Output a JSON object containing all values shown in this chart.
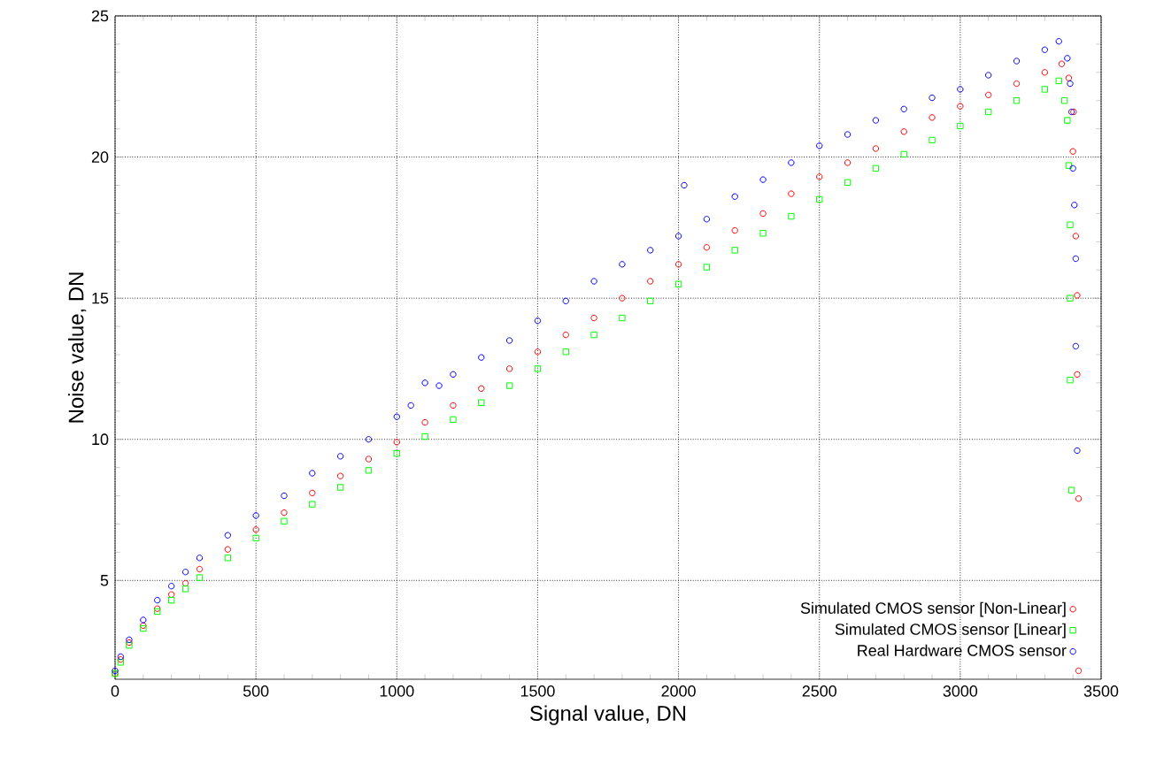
{
  "chart_data": {
    "type": "scatter",
    "xlabel": "Signal value, DN",
    "ylabel": "Noise value, DN",
    "xlim": [
      0,
      3500
    ],
    "ylim": [
      1.5,
      25
    ],
    "xticks": [
      0,
      500,
      1000,
      1500,
      2000,
      2500,
      3000,
      3500
    ],
    "yticks": [
      5,
      10,
      15,
      20,
      25
    ],
    "grid": true,
    "legend": "bottom right",
    "series": [
      {
        "name": "Simulated CMOS sensor [Non-Linear]",
        "color": "#ff0000",
        "marker": "circle",
        "x": [
          0,
          20,
          50,
          100,
          150,
          200,
          250,
          300,
          400,
          500,
          600,
          700,
          800,
          900,
          1000,
          1100,
          1200,
          1300,
          1400,
          1500,
          1600,
          1700,
          1800,
          1900,
          2000,
          2100,
          2200,
          2300,
          2400,
          2500,
          2600,
          2700,
          2800,
          2900,
          3000,
          3100,
          3200,
          3300,
          3360,
          3385,
          3402,
          3400,
          3410,
          3415,
          3415,
          3420,
          3420
        ],
        "values": [
          1.7,
          2.2,
          2.8,
          3.4,
          4.0,
          4.5,
          4.9,
          5.4,
          6.1,
          6.8,
          7.4,
          8.1,
          8.7,
          9.3,
          9.9,
          10.6,
          11.2,
          11.8,
          12.5,
          13.1,
          13.7,
          14.3,
          15.0,
          15.6,
          16.2,
          16.8,
          17.4,
          18.0,
          18.7,
          19.3,
          19.8,
          20.3,
          20.9,
          21.4,
          21.8,
          22.2,
          22.6,
          23.0,
          23.3,
          22.8,
          21.6,
          20.2,
          17.2,
          15.1,
          12.3,
          7.9,
          1.8
        ]
      },
      {
        "name": "Simulated CMOS sensor [Linear]",
        "color": "#00ff00",
        "marker": "square",
        "x": [
          0,
          20,
          50,
          100,
          150,
          200,
          250,
          300,
          400,
          500,
          600,
          700,
          800,
          900,
          1000,
          1100,
          1200,
          1300,
          1400,
          1500,
          1600,
          1700,
          1800,
          1900,
          2000,
          2100,
          2200,
          2300,
          2400,
          2500,
          2600,
          2700,
          2800,
          2900,
          3000,
          3100,
          3200,
          3300,
          3350,
          3370,
          3380,
          3385,
          3390,
          3390,
          3390,
          3395
        ],
        "values": [
          1.7,
          2.1,
          2.7,
          3.3,
          3.9,
          4.3,
          4.7,
          5.1,
          5.8,
          6.5,
          7.1,
          7.7,
          8.3,
          8.9,
          9.5,
          10.1,
          10.7,
          11.3,
          11.9,
          12.5,
          13.1,
          13.7,
          14.3,
          14.9,
          15.5,
          16.1,
          16.7,
          17.3,
          17.9,
          18.5,
          19.1,
          19.6,
          20.1,
          20.6,
          21.1,
          21.6,
          22.0,
          22.4,
          22.7,
          22.0,
          21.3,
          19.7,
          17.6,
          15.0,
          12.1,
          8.2
        ]
      },
      {
        "name": "Real Hardware CMOS sensor",
        "color": "#0000ff",
        "marker": "circle",
        "x": [
          0,
          20,
          50,
          100,
          150,
          200,
          250,
          300,
          400,
          500,
          600,
          700,
          800,
          900,
          1000,
          1050,
          1100,
          1150,
          1200,
          1300,
          1400,
          1500,
          1600,
          1700,
          1800,
          1900,
          2000,
          2020,
          2100,
          2200,
          2300,
          2400,
          2500,
          2600,
          2700,
          2800,
          2900,
          3000,
          3100,
          3200,
          3300,
          3350,
          3380,
          3390,
          3395,
          3400,
          3405,
          3410,
          3410,
          3415
        ],
        "values": [
          1.8,
          2.3,
          2.9,
          3.6,
          4.3,
          4.8,
          5.3,
          5.8,
          6.6,
          7.3,
          8.0,
          8.8,
          9.4,
          10.0,
          10.8,
          11.2,
          12.0,
          11.9,
          12.3,
          12.9,
          13.5,
          14.2,
          14.9,
          15.6,
          16.2,
          16.7,
          17.2,
          19.0,
          17.8,
          18.6,
          19.2,
          19.8,
          20.4,
          20.8,
          21.3,
          21.7,
          22.1,
          22.4,
          22.9,
          23.4,
          23.8,
          24.1,
          23.5,
          22.6,
          21.6,
          19.6,
          18.3,
          16.4,
          13.3,
          9.6
        ]
      }
    ]
  }
}
